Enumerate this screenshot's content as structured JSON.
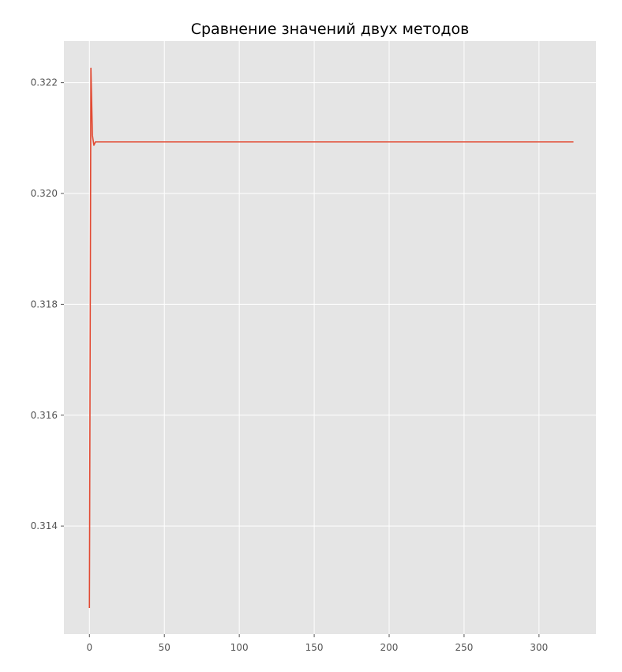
{
  "chart_data": {
    "type": "line",
    "title": "Сравнение значений двух методов",
    "xlabel": "",
    "ylabel": "",
    "xlim": [
      -17,
      338
    ],
    "ylim": [
      0.31205,
      0.32275
    ],
    "x_ticks": [
      0,
      50,
      100,
      150,
      200,
      250,
      300
    ],
    "x_tick_labels": [
      "0",
      "50",
      "100",
      "150",
      "200",
      "250",
      "300"
    ],
    "y_ticks": [
      0.314,
      0.316,
      0.318,
      0.32,
      0.322
    ],
    "y_tick_labels": [
      "0.314",
      "0.316",
      "0.318",
      "0.320",
      "0.322"
    ],
    "grid": true,
    "legend": "none",
    "background_color": "#e5e5e5",
    "grid_color": "#ffffff",
    "series": [
      {
        "color": "#e24a33",
        "x": [
          0,
          1,
          2,
          3,
          4,
          323
        ],
        "values": [
          0.31252,
          0.32226,
          0.32105,
          0.32087,
          0.32093,
          0.32093
        ]
      }
    ]
  }
}
